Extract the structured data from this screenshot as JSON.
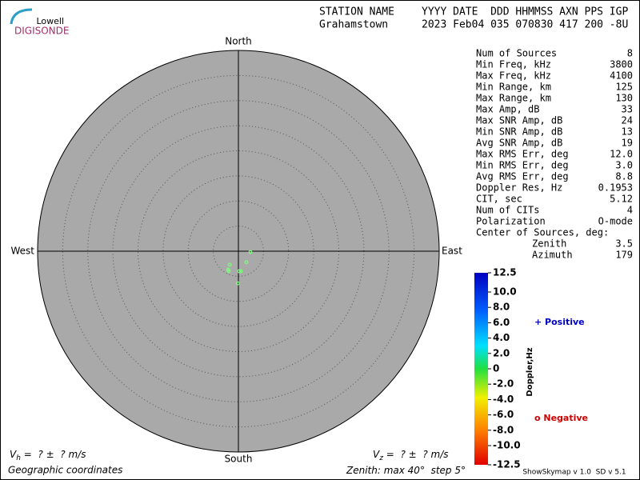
{
  "logo": {
    "top": "Lowell",
    "bottom": "DIGISONDE"
  },
  "header": {
    "row1": [
      "STATION NAME",
      "YYYY DATE  DDD HHMMSS AXN PPS IGP"
    ],
    "row2": [
      "Grahamstown",
      "2023 Feb04 035 070830 417 200 -8U"
    ]
  },
  "compass": {
    "north": "North",
    "south": "South",
    "west": "West",
    "east": "East"
  },
  "polar": {
    "zenith_max": 40,
    "zenith_step": 5
  },
  "sources": [
    {
      "zenith": 2.4,
      "azimuth": 94
    },
    {
      "zenith": 2.7,
      "azimuth": 144
    },
    {
      "zenith": 3.2,
      "azimuth": 213
    },
    {
      "zenith": 4.2,
      "azimuth": 209
    },
    {
      "zenith": 4.4,
      "azimuth": 206
    },
    {
      "zenith": 4.0,
      "azimuth": 173
    },
    {
      "zenith": 4.0,
      "azimuth": 178
    },
    {
      "zenith": 6.4,
      "azimuth": 181
    }
  ],
  "stats": [
    [
      "Num of Sources",
      "8"
    ],
    [
      "Min Freq, kHz",
      "3800"
    ],
    [
      "Max Freq, kHz",
      "4100"
    ],
    [
      "Min Range, km",
      "125"
    ],
    [
      "Max Range, km",
      "130"
    ],
    [
      "Max Amp, dB",
      "33"
    ],
    [
      "Max SNR Amp, dB",
      "24"
    ],
    [
      "Min SNR Amp, dB",
      "13"
    ],
    [
      "Avg SNR Amp, dB",
      "19"
    ],
    [
      "Max RMS Err, deg",
      "12.0"
    ],
    [
      "Min RMS Err, deg",
      "3.0"
    ],
    [
      "Avg RMS Err, deg",
      "8.8"
    ],
    [
      "Doppler Res, Hz",
      "0.1953"
    ],
    [
      "CIT, sec",
      "5.12"
    ],
    [
      "Num of CITs",
      "4"
    ],
    [
      "Polarization",
      "O-mode"
    ]
  ],
  "center": {
    "title": "Center of Sources, deg:",
    "rows": [
      [
        "Zenith",
        "3.5"
      ],
      [
        "Azimuth",
        "179"
      ]
    ]
  },
  "colorbar": {
    "title": "Doppler,Hz",
    "lim": [
      -12.5,
      12.5
    ],
    "ticks": [
      12.5,
      {
        "value": 10,
        "label": "10.0"
      },
      {
        "value": 8,
        "label": "8.0"
      },
      {
        "value": 6,
        "label": "6.0"
      },
      {
        "value": 4,
        "label": "4.0"
      },
      {
        "value": 2,
        "label": "2.0"
      },
      0,
      {
        "value": -2,
        "label": "-2.0"
      },
      {
        "value": -4,
        "label": "-4.0"
      },
      {
        "value": -6,
        "label": "-6.0"
      },
      {
        "value": -8,
        "label": "-8.0"
      },
      {
        "value": -10,
        "label": "-10.0"
      },
      -12.5
    ],
    "positive": "+ Positive",
    "negative": "o Negative"
  },
  "footer": {
    "vh": {
      "symbol": "V",
      "sub": "h",
      "text": " =  ? ±  ? m/s"
    },
    "vz": {
      "symbol": "V",
      "sub": "z",
      "text": " =  ? ±  ? m/s"
    },
    "coords": "Geographic coordinates",
    "zenith": {
      "prefix": "Zenith: max ",
      "unit": "°",
      "mid": "  step "
    },
    "version": "ShowSkymap v 1.0  SD v 5.1"
  }
}
